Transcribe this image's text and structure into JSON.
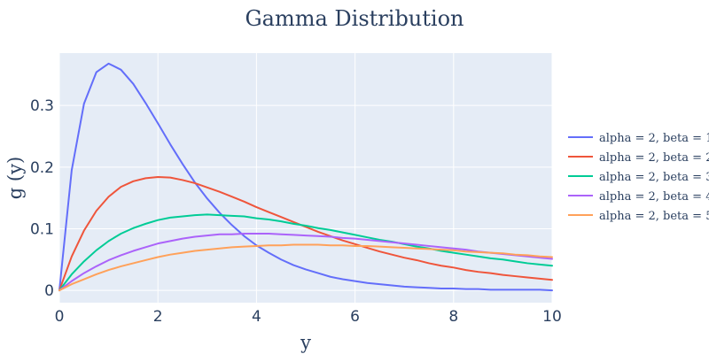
{
  "chart_data": {
    "type": "line",
    "title": "Gamma Distribution",
    "xlabel": "y",
    "ylabel": "g (y)",
    "xlim": [
      0,
      10
    ],
    "ylim": [
      -0.02,
      0.385
    ],
    "x_ticks": [
      0,
      2,
      4,
      6,
      8,
      10
    ],
    "y_ticks": [
      0,
      0.1,
      0.2,
      0.3
    ],
    "y_tick_labels": [
      "0",
      "0.1",
      "0.2",
      "0.3"
    ],
    "grid": true,
    "legend_position": "right",
    "plot_background": "#e5ecf6",
    "x": [
      0,
      0.25,
      0.5,
      0.75,
      1,
      1.25,
      1.5,
      1.75,
      2,
      2.25,
      2.5,
      2.75,
      3,
      3.25,
      3.5,
      3.75,
      4,
      4.25,
      4.5,
      4.75,
      5,
      5.25,
      5.5,
      5.75,
      6,
      6.25,
      6.5,
      6.75,
      7,
      7.25,
      7.5,
      7.75,
      8,
      8.25,
      8.5,
      8.75,
      9,
      9.25,
      9.5,
      9.75,
      10
    ],
    "series": [
      {
        "name": "alpha = 2, beta = 1",
        "color": "#636efa",
        "values": [
          0,
          0.195,
          0.303,
          0.354,
          0.368,
          0.358,
          0.335,
          0.304,
          0.271,
          0.237,
          0.205,
          0.175,
          0.149,
          0.126,
          0.106,
          0.088,
          0.073,
          0.061,
          0.05,
          0.041,
          0.034,
          0.028,
          0.022,
          0.018,
          0.015,
          0.012,
          0.01,
          0.008,
          0.006,
          0.005,
          0.004,
          0.003,
          0.003,
          0.002,
          0.002,
          0.001,
          0.001,
          0.001,
          0.001,
          0.001,
          0
        ]
      },
      {
        "name": "alpha = 2, beta = 2",
        "color": "#ef553b",
        "values": [
          0,
          0.055,
          0.097,
          0.129,
          0.152,
          0.168,
          0.177,
          0.182,
          0.184,
          0.183,
          0.179,
          0.174,
          0.167,
          0.16,
          0.152,
          0.144,
          0.135,
          0.127,
          0.119,
          0.111,
          0.103,
          0.095,
          0.088,
          0.081,
          0.075,
          0.069,
          0.063,
          0.058,
          0.053,
          0.049,
          0.044,
          0.04,
          0.037,
          0.033,
          0.03,
          0.028,
          0.025,
          0.023,
          0.021,
          0.019,
          0.017
        ]
      },
      {
        "name": "alpha = 2, beta = 3",
        "color": "#00cc96",
        "values": [
          0,
          0.026,
          0.047,
          0.065,
          0.08,
          0.092,
          0.101,
          0.108,
          0.114,
          0.118,
          0.12,
          0.122,
          0.123,
          0.122,
          0.121,
          0.12,
          0.117,
          0.115,
          0.112,
          0.108,
          0.105,
          0.101,
          0.098,
          0.094,
          0.09,
          0.086,
          0.082,
          0.079,
          0.075,
          0.071,
          0.068,
          0.064,
          0.061,
          0.058,
          0.055,
          0.052,
          0.05,
          0.047,
          0.044,
          0.042,
          0.04
        ]
      },
      {
        "name": "alpha = 2, beta = 4",
        "color": "#ab63fa",
        "values": [
          0,
          0.015,
          0.028,
          0.039,
          0.049,
          0.057,
          0.064,
          0.07,
          0.076,
          0.08,
          0.084,
          0.087,
          0.089,
          0.091,
          0.091,
          0.092,
          0.092,
          0.092,
          0.091,
          0.09,
          0.089,
          0.088,
          0.087,
          0.085,
          0.084,
          0.082,
          0.08,
          0.078,
          0.076,
          0.074,
          0.072,
          0.07,
          0.068,
          0.066,
          0.063,
          0.061,
          0.059,
          0.057,
          0.055,
          0.053,
          0.051
        ]
      },
      {
        "name": "alpha = 2, beta = 5",
        "color": "#ffa15a",
        "values": [
          0,
          0.01,
          0.018,
          0.026,
          0.033,
          0.039,
          0.044,
          0.049,
          0.054,
          0.058,
          0.061,
          0.064,
          0.066,
          0.068,
          0.07,
          0.071,
          0.072,
          0.073,
          0.073,
          0.074,
          0.074,
          0.074,
          0.073,
          0.073,
          0.072,
          0.072,
          0.071,
          0.07,
          0.069,
          0.068,
          0.067,
          0.066,
          0.065,
          0.063,
          0.062,
          0.061,
          0.06,
          0.058,
          0.057,
          0.055,
          0.054
        ]
      }
    ]
  }
}
